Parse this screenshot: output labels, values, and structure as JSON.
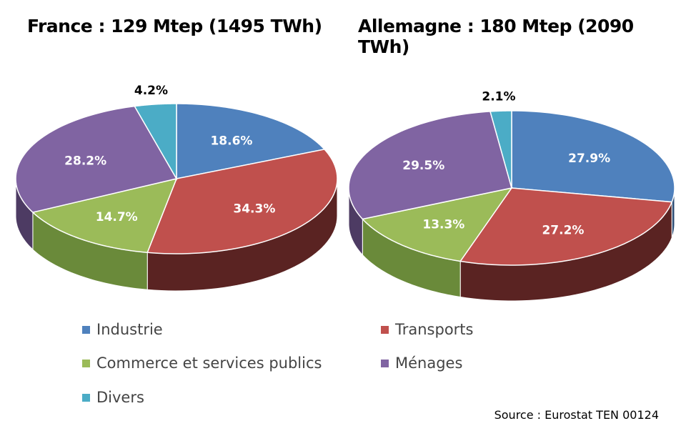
{
  "chart_data": [
    {
      "type": "pie",
      "title": "France : 129 Mtep (1495 TWh)",
      "categories": [
        "Industrie",
        "Transports",
        "Commerce et services publics",
        "Ménages",
        "Divers"
      ],
      "values": [
        18.6,
        34.3,
        14.7,
        28.2,
        4.2
      ],
      "labels": [
        "18.6%",
        "34.3%",
        "14.7%",
        "28.2%",
        "4.2%"
      ]
    },
    {
      "type": "pie",
      "title": "Allemagne : 180 Mtep (2090 TWh)",
      "categories": [
        "Industrie",
        "Transports",
        "Commerce et services publics",
        "Ménages",
        "Divers"
      ],
      "values": [
        27.9,
        27.2,
        13.3,
        29.5,
        2.1
      ],
      "labels": [
        "27.9%",
        "27.2%",
        "13.3%",
        "29.5%",
        "2.1%"
      ]
    }
  ],
  "style": "3d",
  "colors": [
    "#4f81bd",
    "#c0504d",
    "#9bbb59",
    "#8064a2",
    "#4bacc6"
  ],
  "side_colors": [
    "#2c4d75",
    "#5a2322",
    "#6a8a3a",
    "#4d3b63",
    "#2c7a8f"
  ],
  "legend": {
    "placement": "bottom",
    "items": [
      "Industrie",
      "Transports",
      "Commerce et services publics",
      "Ménages",
      "Divers"
    ]
  },
  "source": "Source : Eurostat TEN 00124"
}
